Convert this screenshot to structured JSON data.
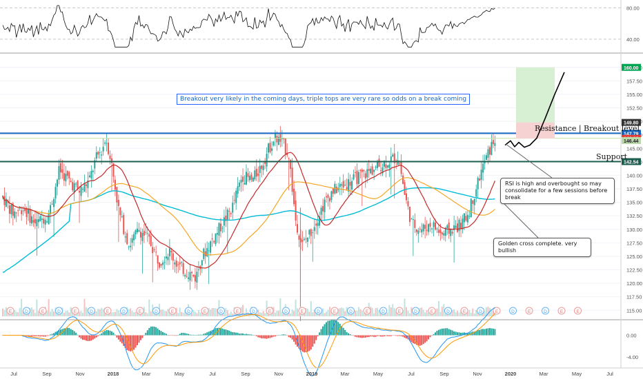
{
  "chart_data": [
    {
      "type": "line",
      "name": "RSI panel",
      "y_ticks": [
        80.0,
        40.0
      ],
      "ylim": [
        25,
        90
      ],
      "note_values": {
        "last": 80
      }
    },
    {
      "type": "candlestick",
      "name": "Price panel",
      "ylim": [
        113.5,
        161.5
      ],
      "y_ticks": [
        115.0,
        117.5,
        120.0,
        122.5,
        125.0,
        127.5,
        130.0,
        132.5,
        135.0,
        137.5,
        140.0,
        142.5,
        145.0,
        147.5,
        150.0,
        152.5,
        155.0,
        157.5,
        160.0
      ],
      "x_labels": [
        "Jul",
        "Sep",
        "Nov",
        "2018",
        "Mar",
        "May",
        "Jul",
        "Sep",
        "Nov",
        "2019",
        "Mar",
        "May",
        "Jul",
        "Sep",
        "Nov",
        "2020",
        "Mar",
        "May",
        "Jul"
      ],
      "x_positions_months": [
        0,
        2,
        4,
        6,
        8,
        10,
        12,
        14,
        16,
        18,
        20,
        22,
        24,
        26,
        28,
        30,
        32,
        34,
        36
      ],
      "levels": {
        "resistance": 147.79,
        "support": 142.54,
        "last_price": 146.86,
        "ma_value": 146.44,
        "target_top": 160.0,
        "stop_top": 149.8
      },
      "price_tags": [
        {
          "value": 160.0,
          "text": "160.00",
          "color": "#00a651"
        },
        {
          "value": 149.8,
          "text": "149.80",
          "color": "#333333"
        },
        {
          "value": 147.79,
          "text": "147.79",
          "color": "#1565c0"
        },
        {
          "value": 146.86,
          "text": "146.86",
          "color": "#e53935"
        },
        {
          "value": 146.44,
          "text": "146.44",
          "color": "#b9d9a8"
        },
        {
          "value": 142.54,
          "text": "142.54",
          "color": "#1b5e4f"
        }
      ],
      "series_colors": {
        "up": "#26a69a",
        "down": "#ef5350",
        "ma_short": "#c62828",
        "ma_mid": "#f5a623",
        "ma_long": "#00bcd4"
      },
      "event_markers": [
        "E",
        "D",
        "E",
        "D",
        "E",
        "D",
        "E",
        "D",
        "E",
        "D",
        "E",
        "D",
        "E",
        "D",
        "E",
        "D",
        "E",
        "D",
        "E",
        "D",
        "E",
        "D",
        "E",
        "D",
        "E",
        "D",
        "E",
        "D",
        "E",
        "D",
        "E",
        "D",
        "E",
        "D",
        "E",
        "E"
      ]
    },
    {
      "type": "bar",
      "name": "MACD panel",
      "y_ticks": [
        0.0,
        -4.0
      ],
      "ylim": [
        -5.5,
        2.6
      ]
    }
  ],
  "annotations": {
    "headline": "Breakout very likely in the coming days, triple tops are very rare so odds on a break coming",
    "resistance_label": "Resistance | Breakout level",
    "support_label": "Support",
    "rsi_note": "RSI is high and overbought so may consolidate for a few sessions before break",
    "golden_note": "Golden cross complete. very bullish"
  }
}
